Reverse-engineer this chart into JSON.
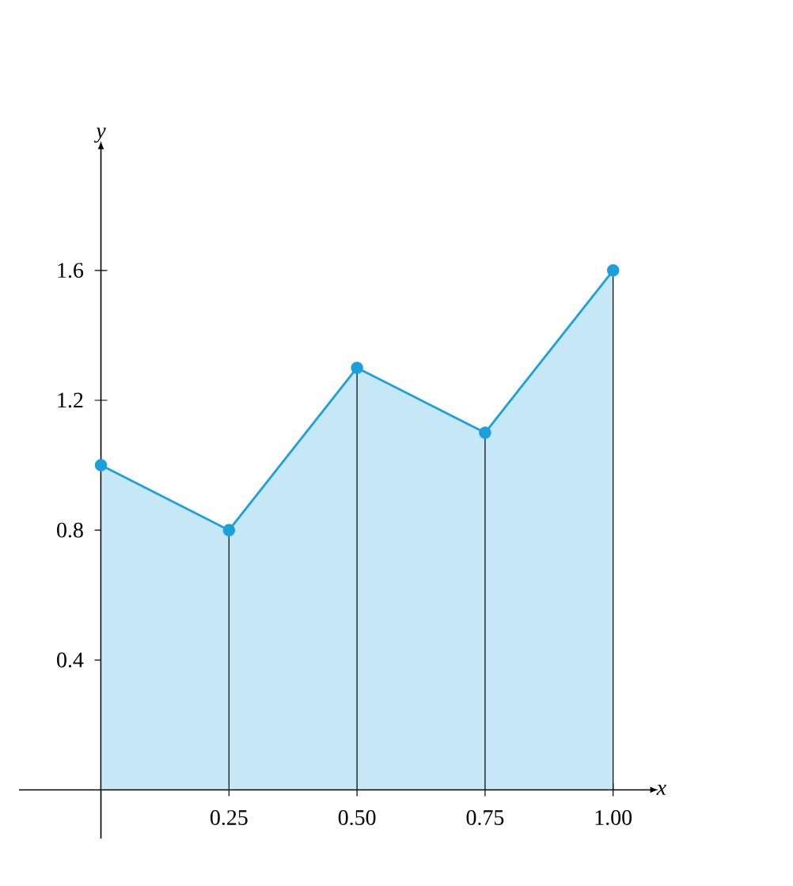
{
  "chart_data": {
    "type": "area",
    "xlabel": "x",
    "ylabel": "y",
    "x": [
      0,
      0.25,
      0.5,
      0.75,
      1.0
    ],
    "series": [
      {
        "color": "#1ca0dc",
        "values": [
          1.0,
          0.8,
          1.3,
          1.1,
          1.6
        ]
      }
    ],
    "marker": "circle",
    "xlim": [
      -0.16,
      1.07
    ],
    "ylim": [
      -0.15,
      1.97
    ],
    "xticks": [
      0.25,
      {
        "value": 0.5,
        "label": "0.50"
      },
      0.75,
      {
        "value": 1.0,
        "label": "1.00"
      }
    ],
    "yticks": [
      0.4,
      0.8,
      1.2,
      1.6
    ]
  }
}
